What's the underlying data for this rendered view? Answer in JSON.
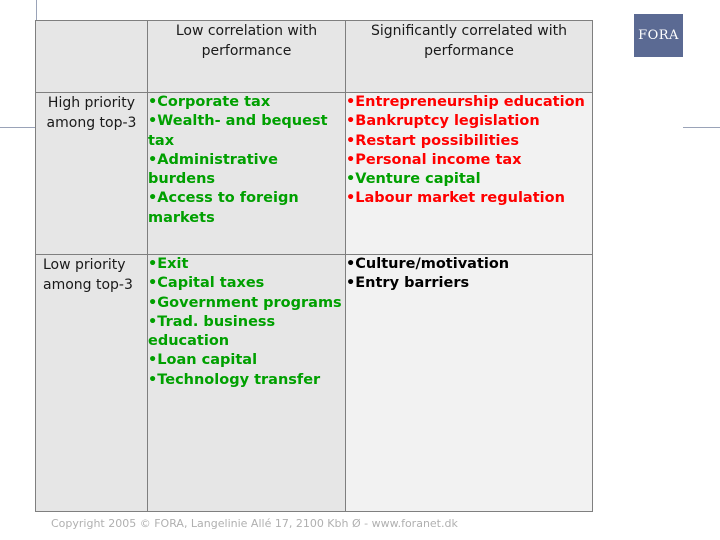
{
  "logo": {
    "text": "FORA"
  },
  "header": {
    "col1": "Low correlation with performance",
    "col2": "Significantly correlated with performance"
  },
  "rows": [
    {
      "label": "High priority among top-3"
    },
    {
      "label": "Low priority among top-3"
    }
  ],
  "cells": {
    "high_low": [
      {
        "text": "•Corporate tax",
        "color": "#00a000"
      },
      {
        "text": "•Wealth- and bequest tax",
        "color": "#00a000"
      },
      {
        "text": "•Administrative burdens",
        "color": "#00a000"
      },
      {
        "text": "•Access to foreign markets",
        "color": "#00a000"
      }
    ],
    "high_sig": [
      {
        "text": "•Entrepreneurship education",
        "color": "#ff0000"
      },
      {
        "text": "•Bankruptcy legislation",
        "color": "#ff0000"
      },
      {
        "text": "•Restart possibilities",
        "color": "#ff0000"
      },
      {
        "text": "•Personal income tax",
        "color": "#ff0000"
      },
      {
        "text": "•Venture capital",
        "color": "#00a000"
      },
      {
        "text": "•Labour market regulation",
        "color": "#ff0000"
      }
    ],
    "low_low": [
      {
        "text": "•Exit",
        "color": "#00a000"
      },
      {
        "text": "•Capital taxes",
        "color": "#00a000"
      },
      {
        "text": "•Government programs",
        "color": "#00a000"
      },
      {
        "text": "•Trad. business education",
        "color": "#00a000"
      },
      {
        "text": "•Loan capital",
        "color": "#00a000"
      },
      {
        "text": "•Technology transfer",
        "color": "#00a000"
      }
    ],
    "low_sig": [
      {
        "text": "•Culture/motivation",
        "color": "#000000"
      },
      {
        "text": "•Entry barriers",
        "color": "#000000"
      }
    ]
  },
  "footer": {
    "text": "Copyright 2005 © FORA, Langelinie Allé 17, 2100 Kbh Ø - www.foranet.dk"
  }
}
